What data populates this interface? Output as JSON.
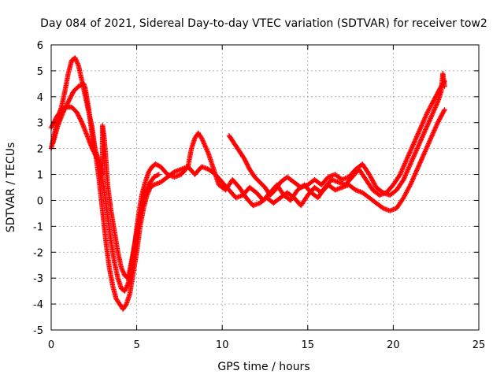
{
  "chart_data": {
    "type": "scatter",
    "title": "Day 084 of 2021, Sidereal Day-to-day VTEC variation (SDTVAR) for receiver tow2",
    "xlabel": "GPS time / hours",
    "ylabel": "SDTVAR / TECUs",
    "xlim": [
      0,
      25
    ],
    "ylim": [
      -5,
      6
    ],
    "xticks": [
      0,
      5,
      10,
      15,
      20,
      25
    ],
    "yticks": [
      -5,
      -4,
      -3,
      -2,
      -1,
      0,
      1,
      2,
      3,
      4,
      5,
      6
    ],
    "grid": true,
    "marker": "plus",
    "color": "#ff0000",
    "series": [
      {
        "points": [
          [
            0.0,
            2.0
          ],
          [
            0.2,
            2.6
          ],
          [
            0.4,
            3.2
          ],
          [
            0.6,
            3.6
          ],
          [
            0.8,
            4.2
          ],
          [
            1.0,
            4.9
          ],
          [
            1.2,
            5.4
          ],
          [
            1.4,
            5.5
          ],
          [
            1.6,
            5.2
          ],
          [
            1.8,
            4.6
          ],
          [
            2.0,
            4.0
          ],
          [
            2.2,
            3.4
          ],
          [
            2.4,
            2.8
          ],
          [
            2.6,
            1.8
          ],
          [
            2.8,
            0.8
          ],
          [
            3.0,
            -0.4
          ],
          [
            3.2,
            -1.6
          ],
          [
            3.4,
            -2.6
          ],
          [
            3.6,
            -3.3
          ],
          [
            3.8,
            -3.8
          ],
          [
            4.0,
            -4.0
          ],
          [
            4.2,
            -4.2
          ],
          [
            4.4,
            -4.0
          ],
          [
            4.6,
            -3.6
          ],
          [
            4.8,
            -2.8
          ],
          [
            5.0,
            -2.0
          ],
          [
            5.2,
            -1.0
          ],
          [
            5.4,
            -0.3
          ],
          [
            5.6,
            0.2
          ],
          [
            5.8,
            0.5
          ],
          [
            6.0,
            0.6
          ],
          [
            6.4,
            0.7
          ],
          [
            6.8,
            0.9
          ],
          [
            7.2,
            1.1
          ],
          [
            7.6,
            1.2
          ],
          [
            8.0,
            1.3
          ],
          [
            8.4,
            1.0
          ],
          [
            8.8,
            1.3
          ],
          [
            9.2,
            1.2
          ],
          [
            9.6,
            1.0
          ],
          [
            10.0,
            0.7
          ],
          [
            10.4,
            0.4
          ],
          [
            10.8,
            0.1
          ],
          [
            11.2,
            0.2
          ],
          [
            11.6,
            0.5
          ],
          [
            12.0,
            0.3
          ],
          [
            12.4,
            0.0
          ],
          [
            12.8,
            0.3
          ],
          [
            13.2,
            0.6
          ],
          [
            13.6,
            0.2
          ],
          [
            14.0,
            0.0
          ],
          [
            14.4,
            0.4
          ],
          [
            14.8,
            0.6
          ],
          [
            15.2,
            0.3
          ],
          [
            15.6,
            0.1
          ],
          [
            16.0,
            0.5
          ],
          [
            16.4,
            0.8
          ],
          [
            16.8,
            0.7
          ],
          [
            17.2,
            0.6
          ],
          [
            17.6,
            0.9
          ],
          [
            18.0,
            1.2
          ],
          [
            18.4,
            0.8
          ],
          [
            18.8,
            0.4
          ],
          [
            19.2,
            0.2
          ],
          [
            19.6,
            0.3
          ],
          [
            20.0,
            0.6
          ],
          [
            20.4,
            1.0
          ],
          [
            20.8,
            1.6
          ],
          [
            21.2,
            2.2
          ],
          [
            21.6,
            2.8
          ],
          [
            22.0,
            3.4
          ],
          [
            22.4,
            3.9
          ],
          [
            22.8,
            4.4
          ],
          [
            23.0,
            4.6
          ]
        ]
      },
      {
        "points": [
          [
            0.0,
            2.8
          ],
          [
            0.3,
            3.2
          ],
          [
            0.6,
            3.5
          ],
          [
            0.9,
            3.6
          ],
          [
            1.2,
            3.6
          ],
          [
            1.5,
            3.4
          ],
          [
            1.8,
            3.0
          ],
          [
            2.1,
            2.5
          ],
          [
            2.4,
            2.0
          ],
          [
            2.7,
            1.6
          ],
          [
            2.9,
            1.2
          ],
          [
            3.1,
            0.4
          ],
          [
            3.3,
            -0.6
          ],
          [
            3.5,
            -1.6
          ],
          [
            3.7,
            -2.4
          ],
          [
            3.9,
            -3.0
          ],
          [
            4.1,
            -3.4
          ],
          [
            4.3,
            -3.5
          ],
          [
            4.5,
            -3.2
          ],
          [
            4.7,
            -2.5
          ],
          [
            4.9,
            -1.6
          ],
          [
            5.1,
            -0.6
          ],
          [
            5.3,
            0.2
          ],
          [
            5.5,
            0.7
          ],
          [
            5.7,
            1.1
          ],
          [
            5.9,
            1.3
          ],
          [
            6.1,
            1.4
          ],
          [
            6.4,
            1.3
          ],
          [
            6.8,
            1.0
          ],
          [
            7.2,
            0.9
          ],
          [
            7.6,
            1.0
          ],
          [
            8.0,
            1.3
          ],
          [
            8.2,
            2.0
          ],
          [
            8.4,
            2.4
          ],
          [
            8.6,
            2.6
          ],
          [
            8.8,
            2.4
          ],
          [
            9.0,
            2.1
          ],
          [
            9.2,
            1.8
          ],
          [
            9.4,
            1.4
          ],
          [
            9.6,
            1.0
          ],
          [
            9.8,
            0.6
          ],
          [
            10.2,
            0.4
          ],
          [
            10.6,
            0.8
          ],
          [
            11.0,
            0.5
          ],
          [
            11.4,
            0.1
          ],
          [
            11.8,
            -0.2
          ],
          [
            12.2,
            -0.1
          ],
          [
            12.6,
            0.1
          ],
          [
            13.0,
            -0.1
          ],
          [
            13.4,
            0.1
          ],
          [
            13.8,
            0.3
          ],
          [
            14.2,
            0.1
          ],
          [
            14.6,
            -0.2
          ],
          [
            15.0,
            0.2
          ],
          [
            15.4,
            0.5
          ],
          [
            15.8,
            0.3
          ],
          [
            16.2,
            0.6
          ],
          [
            16.6,
            0.4
          ],
          [
            17.0,
            0.5
          ],
          [
            17.4,
            0.6
          ],
          [
            17.8,
            0.4
          ],
          [
            18.2,
            0.3
          ],
          [
            18.6,
            0.1
          ],
          [
            19.0,
            -0.1
          ],
          [
            19.4,
            -0.3
          ],
          [
            19.8,
            -0.4
          ],
          [
            20.2,
            -0.3
          ],
          [
            20.6,
            0.1
          ],
          [
            21.0,
            0.6
          ],
          [
            21.4,
            1.2
          ],
          [
            21.8,
            1.8
          ],
          [
            22.2,
            2.4
          ],
          [
            22.6,
            3.0
          ],
          [
            23.0,
            3.5
          ]
        ]
      },
      {
        "points": [
          [
            0.1,
            2.2
          ],
          [
            0.4,
            2.9
          ],
          [
            0.7,
            3.4
          ],
          [
            1.0,
            3.8
          ],
          [
            1.3,
            4.2
          ],
          [
            1.6,
            4.4
          ],
          [
            1.9,
            4.5
          ],
          [
            2.0,
            4.3
          ],
          [
            2.2,
            3.5
          ],
          [
            2.4,
            2.5
          ],
          [
            2.6,
            1.9
          ],
          [
            2.8,
            1.5
          ],
          [
            3.0,
            1.0
          ],
          [
            3.0,
            2.9
          ],
          [
            3.1,
            2.4
          ],
          [
            3.2,
            1.6
          ],
          [
            3.3,
            0.6
          ],
          [
            3.5,
            -0.4
          ],
          [
            3.7,
            -1.2
          ],
          [
            3.9,
            -2.0
          ],
          [
            4.1,
            -2.6
          ],
          [
            4.3,
            -2.9
          ],
          [
            4.5,
            -3.0
          ],
          [
            4.8,
            -2.0
          ],
          [
            5.1,
            -0.9
          ],
          [
            5.4,
            0.1
          ],
          [
            5.7,
            0.6
          ],
          [
            6.0,
            0.9
          ],
          [
            6.3,
            1.0
          ],
          [
            10.4,
            2.5
          ],
          [
            10.7,
            2.2
          ],
          [
            11.0,
            1.9
          ],
          [
            11.3,
            1.6
          ],
          [
            11.6,
            1.2
          ],
          [
            11.9,
            0.9
          ],
          [
            12.2,
            0.7
          ],
          [
            12.5,
            0.5
          ],
          [
            12.8,
            0.2
          ],
          [
            13.1,
            0.4
          ],
          [
            13.4,
            0.7
          ],
          [
            13.8,
            0.9
          ],
          [
            14.2,
            0.7
          ],
          [
            14.6,
            0.5
          ],
          [
            15.0,
            0.6
          ],
          [
            15.4,
            0.8
          ],
          [
            15.8,
            0.6
          ],
          [
            16.2,
            0.9
          ],
          [
            16.6,
            1.0
          ],
          [
            17.0,
            0.8
          ],
          [
            17.4,
            0.9
          ],
          [
            17.8,
            1.2
          ],
          [
            18.2,
            1.4
          ],
          [
            18.6,
            1.0
          ],
          [
            19.0,
            0.5
          ],
          [
            19.4,
            0.3
          ],
          [
            19.8,
            0.2
          ],
          [
            20.2,
            0.4
          ],
          [
            20.6,
            0.8
          ],
          [
            21.0,
            1.4
          ],
          [
            21.4,
            2.0
          ],
          [
            21.8,
            2.6
          ],
          [
            22.2,
            3.2
          ],
          [
            22.6,
            3.8
          ],
          [
            22.8,
            4.2
          ],
          [
            22.9,
            4.9
          ],
          [
            23.0,
            4.4
          ]
        ]
      }
    ]
  }
}
